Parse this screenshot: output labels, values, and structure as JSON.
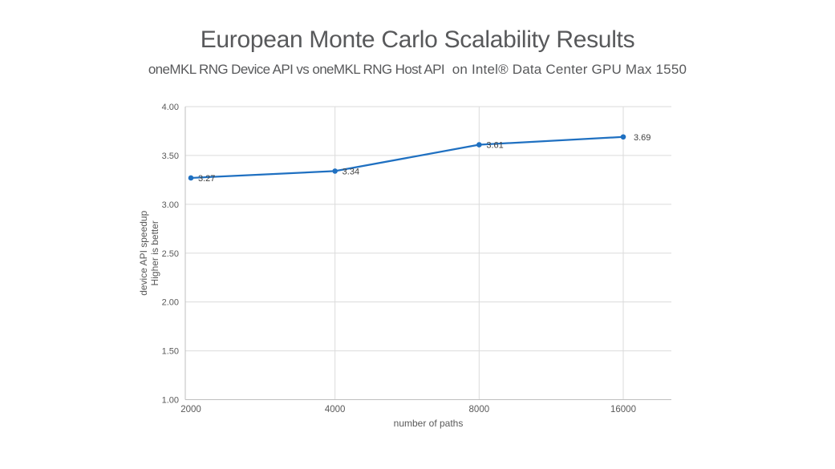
{
  "page": {
    "background": "#ffffff"
  },
  "header": {
    "title": "European Monte Carlo Scalability Results",
    "subtitle_part1": "oneMKL RNG Device API vs oneMKL RNG Host API",
    "subtitle_part2": "on Intel® Data Center GPU Max 1550"
  },
  "colors": {
    "line_blue": "#1F70C1",
    "title_gray": "#58595B",
    "tick_gray": "#595959",
    "point_label_gray": "#404040",
    "gridline_gray": "#DBDBDB",
    "axis_gray": "#BFBFBF"
  },
  "chart_data": {
    "type": "line",
    "title": "European Monte Carlo Scalability Results",
    "subtitle": "oneMKL RNG Device API vs oneMKL RNG Host API on Intel® Data Center GPU Max 1550",
    "x": [
      2000,
      4000,
      8000,
      16000
    ],
    "x_tick_labels": [
      "2000",
      "4000",
      "8000",
      "16000"
    ],
    "series": [
      {
        "name": "device API speedup",
        "values": [
          3.27,
          3.34,
          3.61,
          3.69
        ]
      }
    ],
    "point_labels": [
      "3.27",
      "3.34",
      "3.61",
      "3.69"
    ],
    "point_label_dx": [
      9,
      9,
      9,
      13
    ],
    "y_ticks": [
      1.0,
      1.5,
      2.0,
      2.5,
      3.0,
      3.5,
      4.0
    ],
    "y_tick_labels": [
      "1.00",
      "1.50",
      "2.00",
      "2.50",
      "3.00",
      "3.50",
      "4.00"
    ],
    "ylim": [
      1.0,
      4.0
    ],
    "x_scale": "log2",
    "xlabel": "number of paths",
    "ylabel_lines": [
      "device API speedup",
      "Higher is better"
    ],
    "grid": true,
    "legend": "none",
    "marker": "circle"
  }
}
